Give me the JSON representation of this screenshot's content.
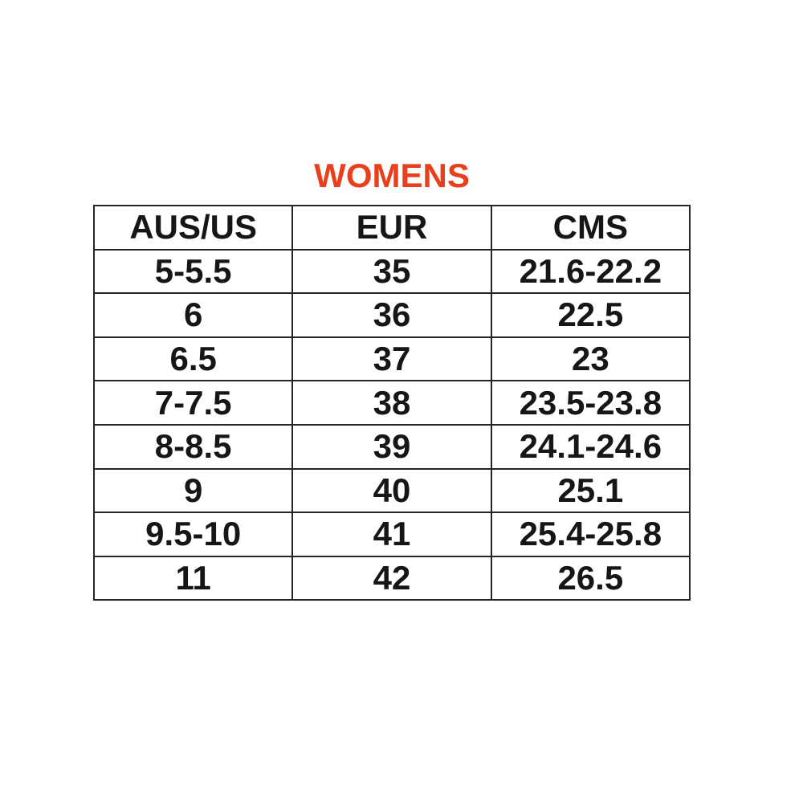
{
  "title": {
    "text": "WOMENS",
    "color": "#e8401c"
  },
  "table": {
    "border_color": "#262626",
    "text_color": "#161616",
    "headers": [
      "AUS/US",
      "EUR",
      "CMS"
    ],
    "rows": [
      [
        "5-5.5",
        "35",
        "21.6-22.2"
      ],
      [
        "6",
        "36",
        "22.5"
      ],
      [
        "6.5",
        "37",
        "23"
      ],
      [
        "7-7.5",
        "38",
        "23.5-23.8"
      ],
      [
        "8-8.5",
        "39",
        "24.1-24.6"
      ],
      [
        "9",
        "40",
        "25.1"
      ],
      [
        "9.5-10",
        "41",
        "25.4-25.8"
      ],
      [
        "11",
        "42",
        "26.5"
      ]
    ]
  },
  "chart_data": {
    "type": "table",
    "title": "WOMENS",
    "columns": [
      "AUS/US",
      "EUR",
      "CMS"
    ],
    "rows": [
      {
        "aus_us": "5-5.5",
        "eur": 35,
        "cms": "21.6-22.2"
      },
      {
        "aus_us": "6",
        "eur": 36,
        "cms": "22.5"
      },
      {
        "aus_us": "6.5",
        "eur": 37,
        "cms": "23"
      },
      {
        "aus_us": "7-7.5",
        "eur": 38,
        "cms": "23.5-23.8"
      },
      {
        "aus_us": "8-8.5",
        "eur": 39,
        "cms": "24.1-24.6"
      },
      {
        "aus_us": "9",
        "eur": 40,
        "cms": "25.1"
      },
      {
        "aus_us": "9.5-10",
        "eur": 41,
        "cms": "25.4-25.8"
      },
      {
        "aus_us": "11",
        "eur": 42,
        "cms": "26.5"
      }
    ]
  }
}
